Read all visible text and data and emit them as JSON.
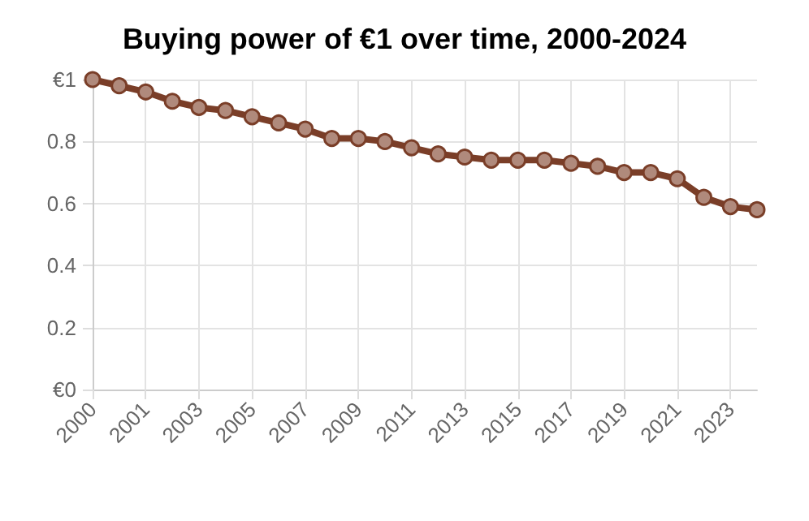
{
  "chart_data": {
    "type": "line",
    "title": "Buying power of €1 over time, 2000-2024",
    "categories": [
      "2000",
      null,
      "2001",
      null,
      "2003",
      null,
      "2005",
      null,
      "2007",
      null,
      "2009",
      null,
      "2011",
      null,
      "2013",
      null,
      "2015",
      null,
      "2017",
      null,
      "2019",
      null,
      "2021",
      null,
      "2023",
      null
    ],
    "series": [
      {
        "color": "#7a3e28",
        "values": [
          1.0,
          0.98,
          0.96,
          0.93,
          0.91,
          0.9,
          0.88,
          0.86,
          0.84,
          0.81,
          0.81,
          0.8,
          0.78,
          0.76,
          0.75,
          0.74,
          0.74,
          0.74,
          0.73,
          0.72,
          0.7,
          0.7,
          0.68,
          0.62,
          0.59,
          0.58
        ]
      }
    ],
    "ylim": [
      0,
      1
    ],
    "yticks": [
      {
        "value": 0,
        "label": "€0"
      },
      0.2,
      0.4,
      0.6,
      0.8,
      {
        "value": 1,
        "label": "€1"
      }
    ],
    "grid": true,
    "marker": "circle",
    "line_style": "solid"
  }
}
